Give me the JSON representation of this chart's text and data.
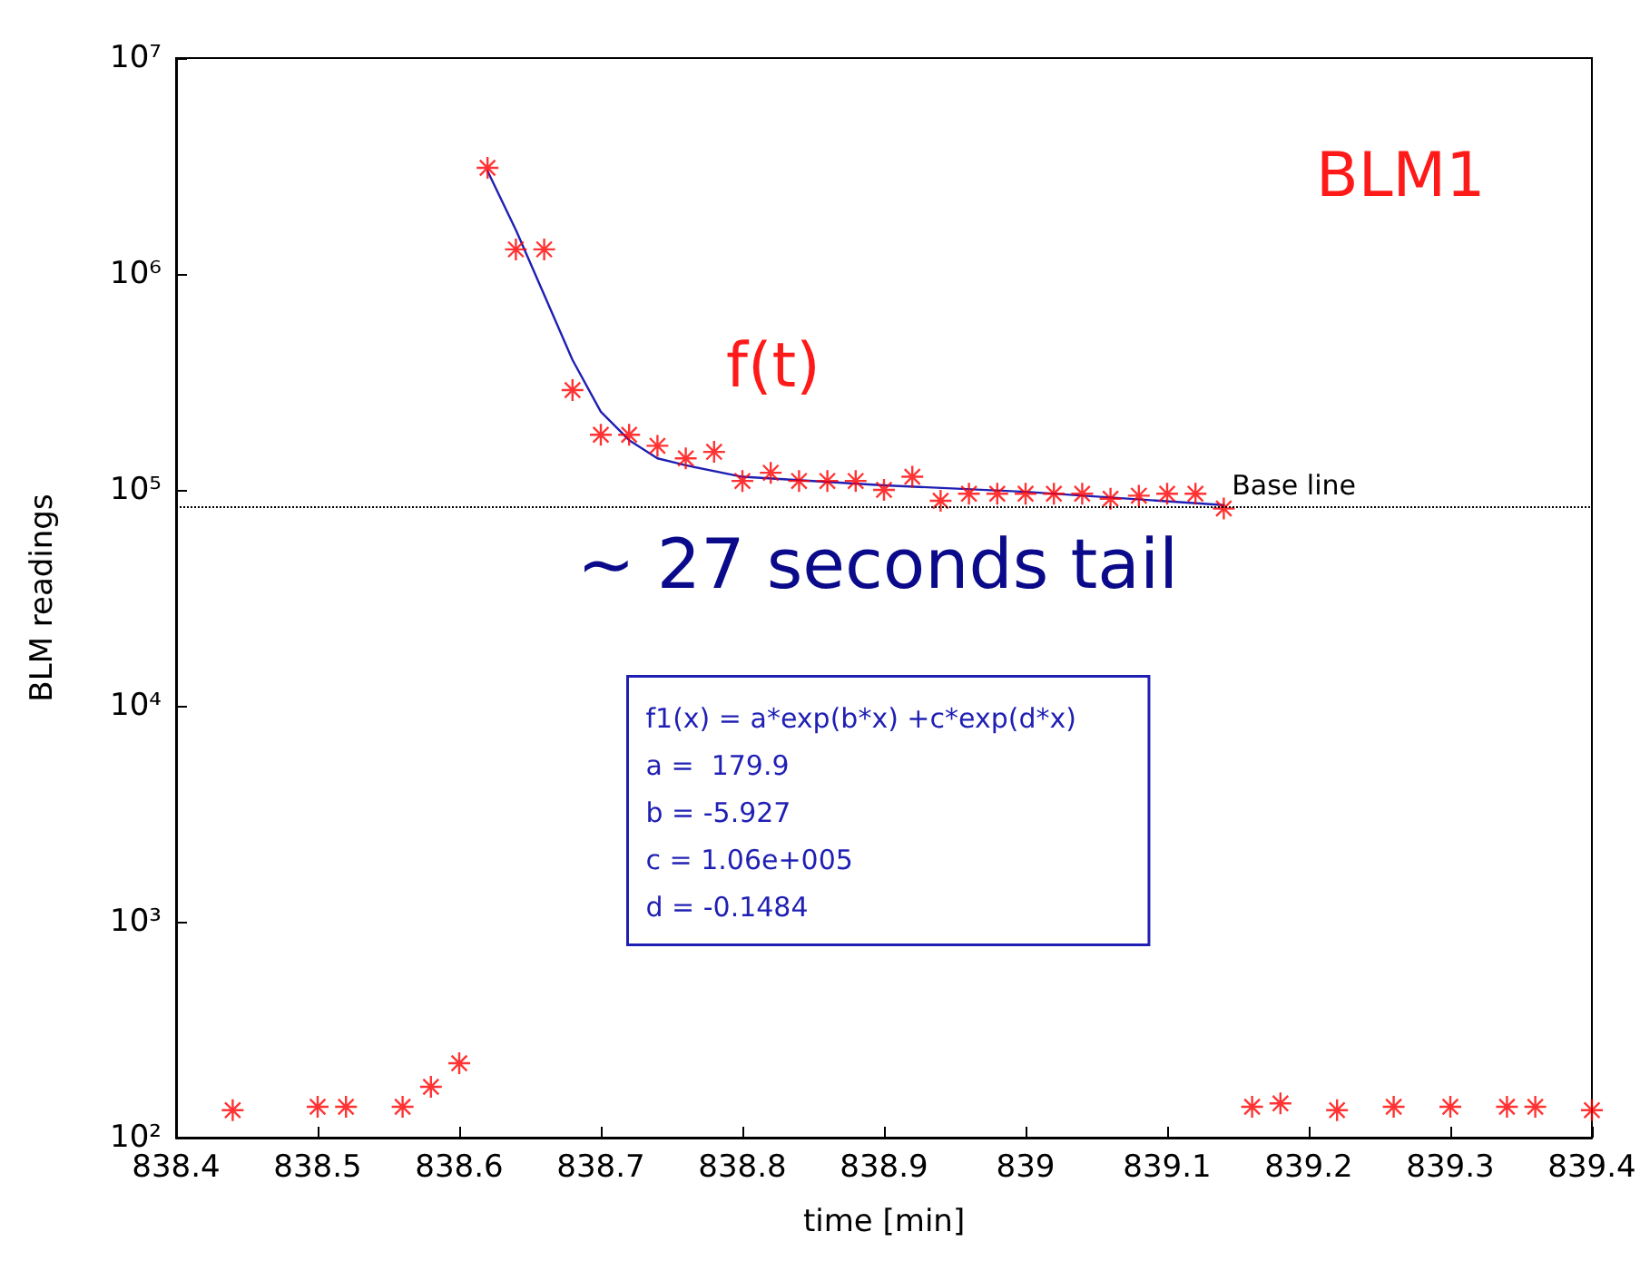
{
  "chart_data": {
    "type": "scatter",
    "xlabel": "time [min]",
    "ylabel": "BLM readings",
    "annotations": [
      "BLM1",
      "f(t)",
      "~ 27 seconds tail",
      "f1(x) = a*exp(b*x) +c*exp(d*x)\na =  179.9\nb = -5.927\nc = 1.06e+005\nd = -0.1484"
    ],
    "series": [
      {
        "color": "#ff0000",
        "marker": "star",
        "x": [
          838.44,
          838.5,
          838.52,
          838.56,
          838.58,
          838.6,
          838.62,
          838.64,
          838.66,
          838.68,
          838.7,
          838.72,
          838.74,
          838.76,
          838.78,
          838.8,
          838.82,
          838.84,
          838.86,
          838.88,
          838.9,
          838.92,
          838.94,
          838.96,
          838.98,
          839.0,
          839.02,
          839.04,
          839.06,
          839.08,
          839.1,
          839.12,
          839.14,
          839.16,
          839.18,
          839.22,
          839.26,
          839.3,
          839.34,
          839.36,
          839.4
        ],
        "values": [
          134,
          139,
          139,
          139,
          172,
          221,
          3100000,
          1300000,
          1300000,
          290000,
          180000,
          180000,
          160000,
          140000,
          150000,
          110000,
          120000,
          110000,
          110000,
          110000,
          100000,
          115000,
          89000,
          96000,
          96000,
          96000,
          96000,
          96000,
          91000,
          94000,
          96000,
          96000,
          82000,
          139,
          144,
          134,
          139,
          139,
          139,
          139,
          134
        ]
      },
      {
        "type": "line",
        "color": "#1f1fb4",
        "marker": "none",
        "line_style": "solid",
        "x": [
          838.62,
          838.64,
          838.66,
          838.68,
          838.7,
          838.72,
          838.74,
          838.76,
          838.8,
          838.9,
          839.0,
          839.14
        ],
        "values": [
          3000000,
          1600000,
          800000,
          400000,
          230000,
          170000,
          140000,
          130000,
          115000,
          105000,
          98000,
          85000
        ]
      }
    ],
    "xlim": [
      838.4,
      839.4
    ],
    "xticks": [
      838.4,
      838.5,
      838.6,
      838.7,
      838.8,
      838.9,
      839,
      839.1,
      839.2,
      839.3,
      839.4
    ],
    "ylim": [
      100,
      10000000
    ],
    "yticks": [
      {
        "value": 100,
        "label": "10²"
      },
      {
        "value": 1000,
        "label": "10³"
      },
      {
        "value": 10000,
        "label": "10⁴"
      },
      {
        "value": 100000,
        "label": "10⁵"
      },
      {
        "value": 1000000,
        "label": "10⁶"
      },
      {
        "value": 10000000,
        "label": "10⁷"
      }
    ],
    "log": "y",
    "grid": false,
    "ref_lines": [
      {
        "axis": "y",
        "value": 84000,
        "label": "Base line",
        "color": "#000000",
        "line_style": "dotted"
      }
    ]
  }
}
